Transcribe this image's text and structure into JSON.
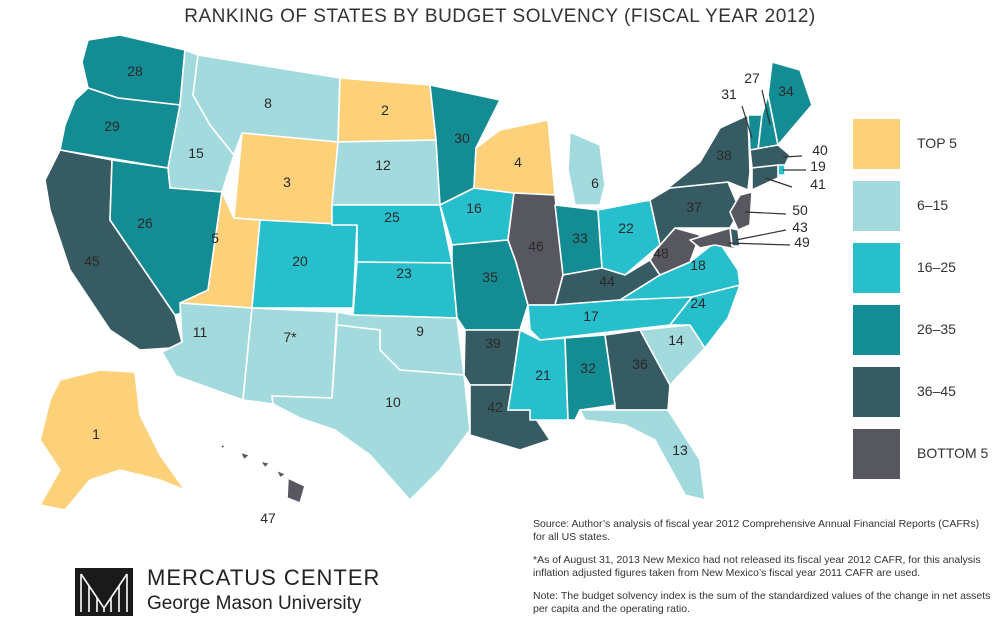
{
  "title": "RANKING OF STATES BY BUDGET SOLVENCY (FISCAL YEAR 2012)",
  "colors": {
    "top5": "#fdd07a",
    "r6_15": "#a3dade",
    "r16_25": "#27bfcc",
    "r26_35": "#148c93",
    "r36_45": "#365b63",
    "bottom5": "#57575f",
    "divider": "#ffffff"
  },
  "legend": [
    {
      "label": "TOP 5",
      "color": "#fdd07a"
    },
    {
      "label": "6–15",
      "color": "#a3dade"
    },
    {
      "label": "16–25",
      "color": "#27bfcc"
    },
    {
      "label": "26–35",
      "color": "#148c93"
    },
    {
      "label": "36–45",
      "color": "#365b63"
    },
    {
      "label": "BOTTOM 5",
      "color": "#57575f"
    }
  ],
  "states": [
    {
      "name": "Washington",
      "rank": "28"
    },
    {
      "name": "Oregon",
      "rank": "29"
    },
    {
      "name": "California",
      "rank": "45"
    },
    {
      "name": "Idaho",
      "rank": "15"
    },
    {
      "name": "Nevada",
      "rank": "26"
    },
    {
      "name": "Montana",
      "rank": "8"
    },
    {
      "name": "Wyoming",
      "rank": "3"
    },
    {
      "name": "Utah",
      "rank": "5"
    },
    {
      "name": "Arizona",
      "rank": "11"
    },
    {
      "name": "Colorado",
      "rank": "20"
    },
    {
      "name": "New Mexico",
      "rank": "7*"
    },
    {
      "name": "North Dakota",
      "rank": "2"
    },
    {
      "name": "South Dakota",
      "rank": "12"
    },
    {
      "name": "Nebraska",
      "rank": "25"
    },
    {
      "name": "Kansas",
      "rank": "23"
    },
    {
      "name": "Oklahoma",
      "rank": "9"
    },
    {
      "name": "Texas",
      "rank": "10"
    },
    {
      "name": "Minnesota",
      "rank": "30"
    },
    {
      "name": "Iowa",
      "rank": "16"
    },
    {
      "name": "Missouri",
      "rank": "35"
    },
    {
      "name": "Arkansas",
      "rank": "39"
    },
    {
      "name": "Louisiana",
      "rank": "42"
    },
    {
      "name": "Wisconsin",
      "rank": "4"
    },
    {
      "name": "Illinois",
      "rank": "46"
    },
    {
      "name": "Michigan",
      "rank": "6"
    },
    {
      "name": "Indiana",
      "rank": "33"
    },
    {
      "name": "Ohio",
      "rank": "22"
    },
    {
      "name": "Kentucky",
      "rank": "44"
    },
    {
      "name": "Tennessee",
      "rank": "17"
    },
    {
      "name": "Mississippi",
      "rank": "21"
    },
    {
      "name": "Alabama",
      "rank": "32"
    },
    {
      "name": "Georgia",
      "rank": "36"
    },
    {
      "name": "Florida",
      "rank": "13"
    },
    {
      "name": "South Carolina",
      "rank": "14"
    },
    {
      "name": "North Carolina",
      "rank": "24"
    },
    {
      "name": "Virginia",
      "rank": "18"
    },
    {
      "name": "West Virginia",
      "rank": "48"
    },
    {
      "name": "Pennsylvania",
      "rank": "37"
    },
    {
      "name": "New York",
      "rank": "38"
    },
    {
      "name": "Vermont",
      "rank": "31"
    },
    {
      "name": "New Hampshire",
      "rank": "27"
    },
    {
      "name": "Maine",
      "rank": "34"
    },
    {
      "name": "Massachusetts",
      "rank": "40"
    },
    {
      "name": "Rhode Island",
      "rank": "19"
    },
    {
      "name": "Connecticut",
      "rank": "41"
    },
    {
      "name": "New Jersey",
      "rank": "50"
    },
    {
      "name": "Delaware",
      "rank": "43"
    },
    {
      "name": "Maryland",
      "rank": "49"
    },
    {
      "name": "Alaska",
      "rank": "1"
    },
    {
      "name": "Hawaii",
      "rank": "47"
    }
  ],
  "notes": {
    "source": "Source: Author’s analysis of fiscal year 2012 Comprehensive Annual Financial Reports (CAFRs) for all US states.",
    "footnote": "*As of August 31, 2013 New Mexico had not released its fiscal year 2012 CAFR, for this analysis inflation adjusted figures taken from New Mexico’s fiscal year 2011 CAFR are used.",
    "note": "Note: The budget solvency index is the sum of the standardized values of the change in net assets per capita and the operating ratio."
  },
  "logo": {
    "name": "MERCATUS CENTER",
    "subtitle": "George Mason University"
  }
}
